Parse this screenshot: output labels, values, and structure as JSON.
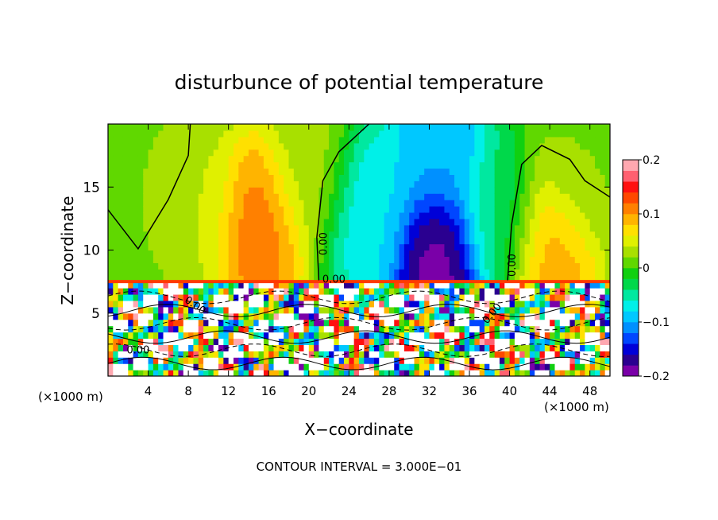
{
  "chart_data": {
    "type": "heatmap",
    "title": "disturbunce of potential temperature",
    "xlabel": "X−coordinate",
    "ylabel": "Z−coordinate",
    "x_unit_left": "(×1000 m)",
    "x_unit_right": "(×1000 m)",
    "xlim": [
      0,
      50
    ],
    "ylim": [
      0,
      20
    ],
    "x_ticks": [
      4,
      8,
      12,
      16,
      20,
      24,
      28,
      32,
      36,
      40,
      44,
      48
    ],
    "x_tick_labels": [
      "4",
      "8",
      "12",
      "16",
      "20",
      "24",
      "28",
      "32",
      "36",
      "40",
      "44",
      "48"
    ],
    "y_ticks": [
      5,
      10,
      15
    ],
    "y_tick_labels": [
      "5",
      "10",
      "15"
    ],
    "colorbar": {
      "range": [
        -0.2,
        0.2
      ],
      "ticks": [
        0.2,
        0.1,
        0,
        -0.1,
        -0.2
      ],
      "tick_labels": [
        "0.2",
        "0.1",
        "0",
        "−0.1",
        "−0.2"
      ],
      "colors": [
        "#7a00a8",
        "#2a0090",
        "#0000d8",
        "#0046ff",
        "#0090ff",
        "#00c8ff",
        "#00f0e8",
        "#00e8a0",
        "#00d84a",
        "#10d010",
        "#60d800",
        "#a8e000",
        "#e0f000",
        "#ffe000",
        "#ffb400",
        "#ff8000",
        "#ff4800",
        "#ff1010",
        "#ff6070",
        "#ffa8b0"
      ]
    },
    "contour_labels": [
      "0.00",
      "0.00",
      "0.00",
      "0.00",
      "0.00",
      "0.00"
    ],
    "contour_interval_text": "CONTOUR INTERVAL = 3.000E−01",
    "layer_boundary_z": 7.5,
    "upper_field_centers": [
      {
        "x": 3,
        "z": 14,
        "value": 0.02
      },
      {
        "x": 9,
        "z": 14,
        "value": 0.04
      },
      {
        "x": 15,
        "z": 12,
        "value": 0.12
      },
      {
        "x": 20,
        "z": 16,
        "value": 0.03
      },
      {
        "x": 26,
        "z": 13,
        "value": -0.08
      },
      {
        "x": 33,
        "z": 9,
        "value": -0.2
      },
      {
        "x": 33,
        "z": 18,
        "value": -0.1
      },
      {
        "x": 39,
        "z": 12,
        "value": -0.04
      },
      {
        "x": 44,
        "z": 10,
        "value": 0.1
      },
      {
        "x": 47,
        "z": 16,
        "value": 0.02
      }
    ]
  }
}
